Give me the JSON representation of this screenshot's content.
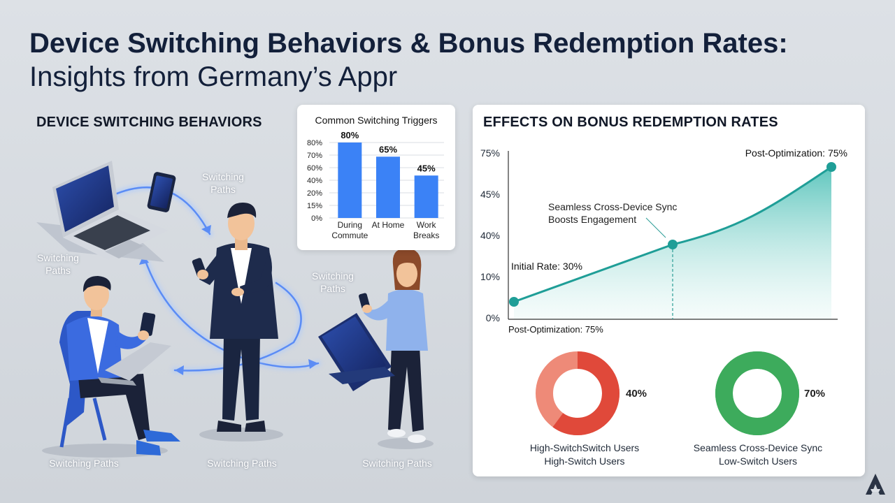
{
  "title": {
    "line1": "Device Switching Behaviors & Bonus Redemption Rates:",
    "line2": "Insights from Germany’s Appr"
  },
  "left_section": {
    "heading": "DEVICE SWITCHING BEHAVIORS",
    "path_labels": [
      "Switching Paths",
      "Switching Paths",
      "Switching Paths",
      "Switching Paths",
      "Switching Paths",
      "Switching Paths"
    ]
  },
  "right_section": {
    "heading": "EFFECTS ON BONUS REDEMPTION RATES"
  },
  "colors": {
    "bar": "#3b82f6",
    "line": "#1f9e97",
    "donut_high": "#e0493a",
    "donut_high_light": "#ee8a78",
    "donut_low": "#3dab5c",
    "title": "#13203a"
  },
  "chart_data": [
    {
      "type": "bar",
      "title": "Common Switching Triggers",
      "categories": [
        "During Commute",
        "At Home",
        "Work Breaks"
      ],
      "category_lines": [
        [
          "During",
          "Commute"
        ],
        [
          "At Home"
        ],
        [
          "Work",
          "Breaks"
        ]
      ],
      "values": [
        80,
        65,
        45
      ],
      "value_labels": [
        "80%",
        "65%",
        "45%"
      ],
      "y_ticks": [
        "80%",
        "70%",
        "60%",
        "40%",
        "20%",
        "15%",
        "0%"
      ],
      "grid": true
    },
    {
      "type": "line",
      "title": "",
      "x": [
        0,
        1,
        2
      ],
      "y": [
        30,
        48,
        75
      ],
      "y_ticks": [
        "75%",
        "45%",
        "40%",
        "10%",
        "0%"
      ],
      "fill": "area",
      "annotations": {
        "start": "Initial Rate: 30%",
        "end": "Post-Optimization: 75%",
        "mid": [
          "Seamless Cross-Device Sync",
          "Boosts Engagement"
        ],
        "below_axis": "Post-Optimization: 75%"
      }
    },
    {
      "type": "pie",
      "value": 40,
      "value_label": "40%",
      "caption": [
        "High-SwitchSwitch Users",
        "High-Switch Users"
      ]
    },
    {
      "type": "pie",
      "value": 70,
      "value_label": "70%",
      "caption": [
        "Seamless Cross-Device Sync",
        "Low-Switch Users"
      ]
    }
  ]
}
